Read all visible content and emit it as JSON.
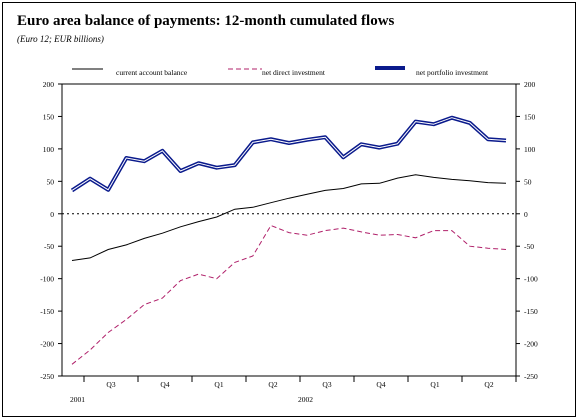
{
  "title": "Euro area balance of payments: 12-month cumulated flows",
  "subtitle": "(Euro 12; EUR billions)",
  "chart_data": {
    "type": "line",
    "ylim": [
      -250,
      200
    ],
    "yticks": [
      200,
      150,
      100,
      50,
      0,
      -50,
      -100,
      -150,
      -200,
      -250
    ],
    "x_tick_labels": [
      "Q3",
      "Q4",
      "Q1",
      "Q2",
      "Q3",
      "Q4",
      "Q1",
      "Q2"
    ],
    "x_year_labels": [
      "2001",
      "2002"
    ],
    "zero_line": "dotted",
    "legend_position": "top",
    "colors": {
      "current": "#000000",
      "direct": "#b0206a",
      "portfolio": "#0a1a8c"
    },
    "series": [
      {
        "name": "current account balance",
        "style": "solid-thin",
        "values": [
          -72,
          -68,
          -55,
          -48,
          -38,
          -30,
          -20,
          -12,
          -5,
          7,
          10,
          17,
          24,
          30,
          36,
          39,
          46,
          47,
          55,
          60,
          56,
          53,
          51,
          48,
          47
        ]
      },
      {
        "name": "net direct investment",
        "style": "dashed",
        "values": [
          -232,
          -210,
          -183,
          -163,
          -140,
          -130,
          -103,
          -93,
          -100,
          -75,
          -65,
          -18,
          -29,
          -33,
          -26,
          -22,
          -28,
          -33,
          -32,
          -37,
          -26,
          -26,
          -50,
          -53,
          -55
        ]
      },
      {
        "name": "net portfolio investment",
        "style": "double-thick",
        "values": [
          36,
          54,
          37,
          86,
          81,
          97,
          66,
          78,
          71,
          75,
          110,
          115,
          109,
          114,
          118,
          87,
          107,
          102,
          108,
          142,
          138,
          148,
          140,
          115,
          113
        ]
      }
    ]
  }
}
